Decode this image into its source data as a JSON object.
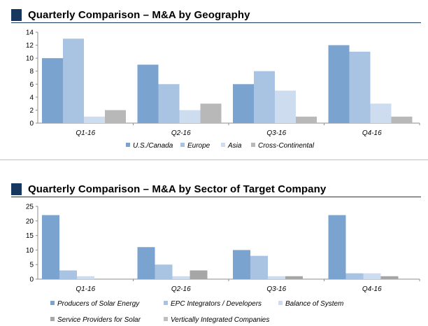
{
  "chart_data": [
    {
      "type": "bar",
      "title": "Quarterly Comparison – M&A by Geography",
      "categories": [
        "Q1-16",
        "Q2-16",
        "Q3-16",
        "Q4-16"
      ],
      "series": [
        {
          "name": "U.S./Canada",
          "values": [
            10,
            9,
            6,
            12
          ],
          "color": "#7ba3d0"
        },
        {
          "name": "Europe",
          "values": [
            13,
            6,
            8,
            11
          ],
          "color": "#a9c4e2"
        },
        {
          "name": "Asia",
          "values": [
            1,
            2,
            5,
            3
          ],
          "color": "#cddcee"
        },
        {
          "name": "Cross-Continental",
          "values": [
            2,
            3,
            1,
            1
          ],
          "color": "#b8b8b8"
        }
      ],
      "ylim": [
        0,
        14
      ],
      "yticks": [
        0,
        2,
        4,
        6,
        8,
        10,
        12,
        14
      ],
      "grid": false,
      "legend_position": "bottom"
    },
    {
      "type": "bar",
      "title": "Quarterly Comparison – M&A by Sector of Target Company",
      "categories": [
        "Q1-16",
        "Q2-16",
        "Q3-16",
        "Q4-16"
      ],
      "series": [
        {
          "name": "Producers of Solar Energy",
          "values": [
            22,
            11,
            10,
            22
          ],
          "color": "#7ba3d0"
        },
        {
          "name": "EPC Integrators / Developers",
          "values": [
            3,
            5,
            8,
            2
          ],
          "color": "#a9c4e2"
        },
        {
          "name": "Balance of System",
          "values": [
            1,
            1,
            1,
            2
          ],
          "color": "#cddcee"
        },
        {
          "name": "Service Providers for Solar",
          "values": [
            0,
            3,
            1,
            1
          ],
          "color": "#a6a6a6"
        },
        {
          "name": "Vertically Integrated Companies",
          "values": [
            0,
            0,
            0,
            0
          ],
          "color": "#bfbfbf"
        }
      ],
      "ylim": [
        0,
        25
      ],
      "yticks": [
        0,
        5,
        10,
        15,
        20,
        25
      ],
      "grid": false,
      "legend_position": "bottom"
    }
  ]
}
